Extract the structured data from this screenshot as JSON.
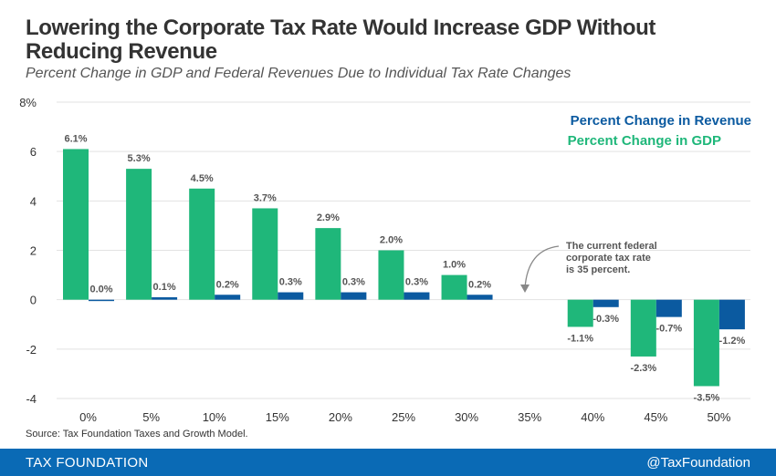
{
  "header": {
    "title": "Lowering the Corporate Tax Rate Would Increase GDP Without Reducing Revenue",
    "subtitle": "Percent Change in GDP and Federal Revenues Due to Individual Tax Rate Changes"
  },
  "chart_data": {
    "type": "bar",
    "title": "Lowering the Corporate Tax Rate Would Increase GDP Without Reducing Revenue",
    "subtitle": "Percent Change in GDP and Federal Revenues Due to Individual Tax Rate Changes",
    "categories": [
      "0%",
      "5%",
      "10%",
      "15%",
      "20%",
      "25%",
      "30%",
      "35%",
      "40%",
      "45%",
      "50%"
    ],
    "series": [
      {
        "name": "Percent Change in GDP",
        "color": "#1fb77a",
        "values": [
          6.1,
          5.3,
          4.5,
          3.7,
          2.9,
          2.0,
          1.0,
          null,
          -1.1,
          -2.3,
          -3.5
        ],
        "labels": [
          "6.1%",
          "5.3%",
          "4.5%",
          "3.7%",
          "2.9%",
          "2.0%",
          "1.0%",
          "",
          "-1.1%",
          "-2.3%",
          "-3.5%"
        ]
      },
      {
        "name": "Percent Change in Revenue",
        "color": "#0b5aa0",
        "values": [
          0.0,
          0.1,
          0.2,
          0.3,
          0.3,
          0.3,
          0.2,
          null,
          -0.3,
          -0.7,
          -1.2
        ],
        "labels": [
          "0.0%",
          "0.1%",
          "0.2%",
          "0.3%",
          "0.3%",
          "0.3%",
          "0.2%",
          "",
          "-0.3%",
          "-0.7%",
          "-1.2%"
        ]
      }
    ],
    "yticks": [
      {
        "value": 8,
        "label": "8%"
      },
      {
        "value": 6,
        "label": "6"
      },
      {
        "value": 4,
        "label": "4"
      },
      {
        "value": 2,
        "label": "2"
      },
      {
        "value": 0,
        "label": "0"
      },
      {
        "value": -2,
        "label": "-2"
      },
      {
        "value": -4,
        "label": "-4"
      }
    ],
    "ylim": [
      -4,
      8
    ],
    "grid": true,
    "legend": [
      "Percent Change in Revenue",
      "Percent Change in GDP"
    ],
    "legend_position": "top-right",
    "annotation": {
      "lines": [
        "The current federal",
        "corporate tax rate",
        "is 35 percent."
      ],
      "category": "35%"
    }
  },
  "source": "Source: Tax Foundation Taxes and Growth Model.",
  "footer": {
    "brand": "TAX FOUNDATION",
    "handle": "@TaxFoundation"
  }
}
